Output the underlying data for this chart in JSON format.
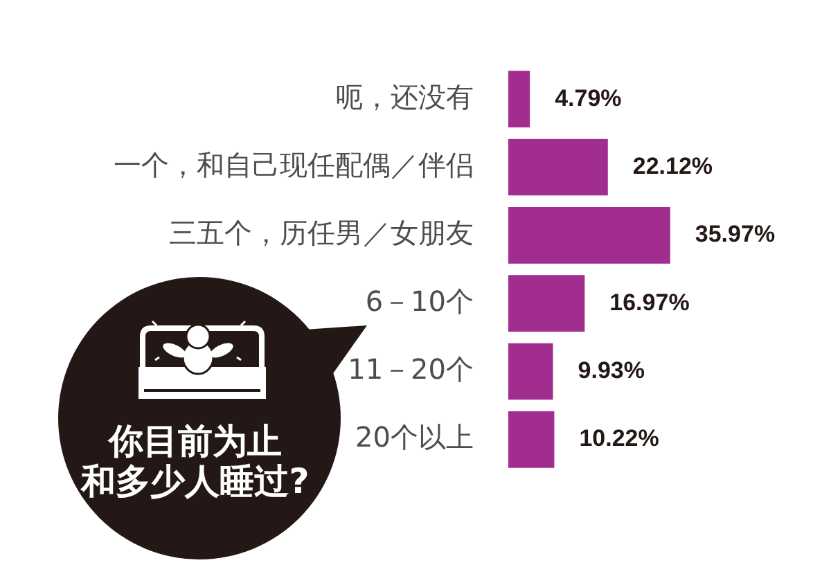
{
  "chart_data": {
    "type": "bar",
    "orientation": "horizontal",
    "title": "你目前为止和多少人睡过?",
    "categories": [
      "呃，还没有",
      "一个，和自己现任配偶／伴侣",
      "三五个，历任男／女朋友",
      "6－10个",
      "11－20个",
      "20个以上"
    ],
    "values": [
      4.79,
      22.12,
      35.97,
      16.97,
      9.93,
      10.22
    ],
    "color": "#a12d8f",
    "value_labels": [
      "4.79%",
      "22.12%",
      "35.97%",
      "16.97%",
      "9.93%",
      "10.22%"
    ]
  }
}
